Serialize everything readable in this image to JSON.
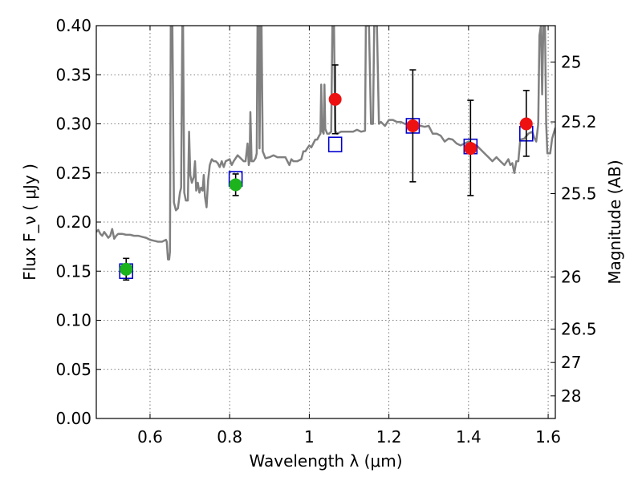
{
  "chart_data": {
    "type": "scatter",
    "xlabel": "Wavelength  λ (μm)",
    "ylabel": "Flux  F_ν  ( μJy )",
    "ylabel_right": "Magnitude (AB)",
    "xlim": [
      0.465,
      1.618
    ],
    "ylim": [
      0.0,
      0.4
    ],
    "grid": true,
    "x_ticks": [
      0.6,
      0.8,
      1.0,
      1.2,
      1.4,
      1.6
    ],
    "x_tick_labels": [
      "0.6",
      "0.8",
      "1",
      "1.2",
      "1.4",
      "1.6"
    ],
    "y_ticks": [
      0.0,
      0.05,
      0.1,
      0.15,
      0.2,
      0.25,
      0.3,
      0.35,
      0.4
    ],
    "y_tick_labels": [
      "0.00",
      "0.05",
      "0.10",
      "0.15",
      "0.20",
      "0.25",
      "0.30",
      "0.35",
      "0.40"
    ],
    "right_ticks": [
      {
        "label": "25",
        "flux": 0.363
      },
      {
        "label": "25.2",
        "flux": 0.302
      },
      {
        "label": "25.5",
        "flux": 0.229
      },
      {
        "label": "26",
        "flux": 0.144
      },
      {
        "label": "26.5",
        "flux": 0.091
      },
      {
        "label": "27",
        "flux": 0.057
      },
      {
        "label": "28",
        "flux": 0.023
      }
    ],
    "series": [
      {
        "kind": "line",
        "color": "#808080",
        "points": [
          [
            0.465,
            0.19
          ],
          [
            0.47,
            0.192
          ],
          [
            0.475,
            0.188
          ],
          [
            0.48,
            0.186
          ],
          [
            0.485,
            0.19
          ],
          [
            0.49,
            0.187
          ],
          [
            0.495,
            0.184
          ],
          [
            0.5,
            0.186
          ],
          [
            0.505,
            0.193
          ],
          [
            0.51,
            0.183
          ],
          [
            0.515,
            0.186
          ],
          [
            0.52,
            0.188
          ],
          [
            0.53,
            0.188
          ],
          [
            0.54,
            0.187
          ],
          [
            0.55,
            0.187
          ],
          [
            0.56,
            0.186
          ],
          [
            0.57,
            0.186
          ],
          [
            0.58,
            0.185
          ],
          [
            0.59,
            0.184
          ],
          [
            0.6,
            0.182
          ],
          [
            0.61,
            0.181
          ],
          [
            0.62,
            0.18
          ],
          [
            0.63,
            0.18
          ],
          [
            0.64,
            0.182
          ],
          [
            0.642,
            0.18
          ],
          [
            0.645,
            0.162
          ],
          [
            0.648,
            0.162
          ],
          [
            0.65,
            0.17
          ],
          [
            0.652,
            0.4
          ],
          [
            0.656,
            0.4
          ],
          [
            0.66,
            0.22
          ],
          [
            0.665,
            0.212
          ],
          [
            0.67,
            0.214
          ],
          [
            0.675,
            0.23
          ],
          [
            0.678,
            0.235
          ],
          [
            0.681,
            0.4
          ],
          [
            0.683,
            0.4
          ],
          [
            0.686,
            0.23
          ],
          [
            0.69,
            0.222
          ],
          [
            0.695,
            0.222
          ],
          [
            0.698,
            0.292
          ],
          [
            0.701,
            0.248
          ],
          [
            0.705,
            0.24
          ],
          [
            0.71,
            0.246
          ],
          [
            0.713,
            0.262
          ],
          [
            0.716,
            0.232
          ],
          [
            0.72,
            0.24
          ],
          [
            0.724,
            0.23
          ],
          [
            0.728,
            0.235
          ],
          [
            0.732,
            0.232
          ],
          [
            0.735,
            0.248
          ],
          [
            0.738,
            0.226
          ],
          [
            0.742,
            0.215
          ],
          [
            0.746,
            0.243
          ],
          [
            0.75,
            0.258
          ],
          [
            0.755,
            0.264
          ],
          [
            0.76,
            0.262
          ],
          [
            0.765,
            0.262
          ],
          [
            0.77,
            0.26
          ],
          [
            0.775,
            0.256
          ],
          [
            0.78,
            0.262
          ],
          [
            0.785,
            0.256
          ],
          [
            0.79,
            0.262
          ],
          [
            0.8,
            0.264
          ],
          [
            0.805,
            0.258
          ],
          [
            0.81,
            0.262
          ],
          [
            0.815,
            0.265
          ],
          [
            0.82,
            0.268
          ],
          [
            0.825,
            0.266
          ],
          [
            0.83,
            0.264
          ],
          [
            0.835,
            0.262
          ],
          [
            0.84,
            0.262
          ],
          [
            0.845,
            0.28
          ],
          [
            0.848,
            0.258
          ],
          [
            0.85,
            0.262
          ],
          [
            0.852,
            0.312
          ],
          [
            0.855,
            0.262
          ],
          [
            0.86,
            0.262
          ],
          [
            0.865,
            0.265
          ],
          [
            0.868,
            0.27
          ],
          [
            0.87,
            0.4
          ],
          [
            0.873,
            0.4
          ],
          [
            0.875,
            0.275
          ],
          [
            0.878,
            0.4
          ],
          [
            0.88,
            0.4
          ],
          [
            0.883,
            0.272
          ],
          [
            0.89,
            0.265
          ],
          [
            0.9,
            0.266
          ],
          [
            0.91,
            0.268
          ],
          [
            0.92,
            0.266
          ],
          [
            0.93,
            0.266
          ],
          [
            0.94,
            0.266
          ],
          [
            0.95,
            0.258
          ],
          [
            0.955,
            0.264
          ],
          [
            0.96,
            0.262
          ],
          [
            0.97,
            0.262
          ],
          [
            0.98,
            0.264
          ],
          [
            0.985,
            0.272
          ],
          [
            0.99,
            0.272
          ],
          [
            0.995,
            0.275
          ],
          [
            1.0,
            0.278
          ],
          [
            1.005,
            0.276
          ],
          [
            1.01,
            0.28
          ],
          [
            1.015,
            0.284
          ],
          [
            1.02,
            0.284
          ],
          [
            1.025,
            0.288
          ],
          [
            1.028,
            0.29
          ],
          [
            1.03,
            0.34
          ],
          [
            1.032,
            0.293
          ],
          [
            1.036,
            0.29
          ],
          [
            1.038,
            0.34
          ],
          [
            1.04,
            0.295
          ],
          [
            1.045,
            0.29
          ],
          [
            1.05,
            0.29
          ],
          [
            1.055,
            0.292
          ],
          [
            1.058,
            0.4
          ],
          [
            1.062,
            0.4
          ],
          [
            1.065,
            0.293
          ],
          [
            1.07,
            0.29
          ],
          [
            1.08,
            0.292
          ],
          [
            1.09,
            0.292
          ],
          [
            1.1,
            0.292
          ],
          [
            1.11,
            0.292
          ],
          [
            1.12,
            0.294
          ],
          [
            1.13,
            0.292
          ],
          [
            1.14,
            0.293
          ],
          [
            1.142,
            0.4
          ],
          [
            1.15,
            0.4
          ],
          [
            1.155,
            0.3
          ],
          [
            1.16,
            0.3
          ],
          [
            1.163,
            0.4
          ],
          [
            1.17,
            0.4
          ],
          [
            1.175,
            0.3
          ],
          [
            1.18,
            0.302
          ],
          [
            1.19,
            0.298
          ],
          [
            1.2,
            0.304
          ],
          [
            1.21,
            0.304
          ],
          [
            1.22,
            0.302
          ],
          [
            1.23,
            0.302
          ],
          [
            1.24,
            0.3
          ],
          [
            1.25,
            0.3
          ],
          [
            1.26,
            0.298
          ],
          [
            1.27,
            0.299
          ],
          [
            1.28,
            0.298
          ],
          [
            1.29,
            0.297
          ],
          [
            1.3,
            0.298
          ],
          [
            1.31,
            0.29
          ],
          [
            1.32,
            0.29
          ],
          [
            1.33,
            0.288
          ],
          [
            1.34,
            0.282
          ],
          [
            1.35,
            0.285
          ],
          [
            1.36,
            0.284
          ],
          [
            1.37,
            0.28
          ],
          [
            1.38,
            0.278
          ],
          [
            1.39,
            0.28
          ],
          [
            1.4,
            0.282
          ],
          [
            1.41,
            0.28
          ],
          [
            1.42,
            0.278
          ],
          [
            1.43,
            0.274
          ],
          [
            1.44,
            0.27
          ],
          [
            1.45,
            0.266
          ],
          [
            1.46,
            0.262
          ],
          [
            1.47,
            0.266
          ],
          [
            1.48,
            0.262
          ],
          [
            1.49,
            0.258
          ],
          [
            1.5,
            0.264
          ],
          [
            1.505,
            0.258
          ],
          [
            1.51,
            0.26
          ],
          [
            1.515,
            0.25
          ],
          [
            1.52,
            0.262
          ],
          [
            1.525,
            0.262
          ],
          [
            1.53,
            0.284
          ],
          [
            1.54,
            0.285
          ],
          [
            1.55,
            0.29
          ],
          [
            1.56,
            0.292
          ],
          [
            1.565,
            0.286
          ],
          [
            1.57,
            0.282
          ],
          [
            1.575,
            0.3
          ],
          [
            1.578,
            0.39
          ],
          [
            1.582,
            0.4
          ],
          [
            1.585,
            0.33
          ],
          [
            1.588,
            0.4
          ],
          [
            1.592,
            0.4
          ],
          [
            1.595,
            0.3
          ],
          [
            1.598,
            0.27
          ],
          [
            1.605,
            0.27
          ],
          [
            1.61,
            0.285
          ],
          [
            1.618,
            0.296
          ]
        ]
      },
      {
        "kind": "markers",
        "marker": "square-open",
        "color": "#0000cc",
        "x": [
          0.54,
          0.815,
          1.065,
          1.26,
          1.405,
          1.545
        ],
        "y": [
          0.15,
          0.244,
          0.279,
          0.298,
          0.277,
          0.29
        ]
      },
      {
        "kind": "markers",
        "marker": "circle",
        "color": "#1db31d",
        "x": [
          0.54,
          0.815
        ],
        "y": [
          0.152,
          0.238
        ],
        "yerr": [
          0.011,
          0.011
        ]
      },
      {
        "kind": "markers",
        "marker": "circle",
        "color": "#ee1111",
        "x": [
          1.065,
          1.26,
          1.405,
          1.545
        ],
        "y": [
          0.325,
          0.298,
          0.275,
          0.3
        ],
        "yerr_low": [
          0.035,
          0.057,
          0.048,
          0.033
        ],
        "yerr_high": [
          0.035,
          0.057,
          0.049,
          0.034
        ]
      }
    ]
  }
}
